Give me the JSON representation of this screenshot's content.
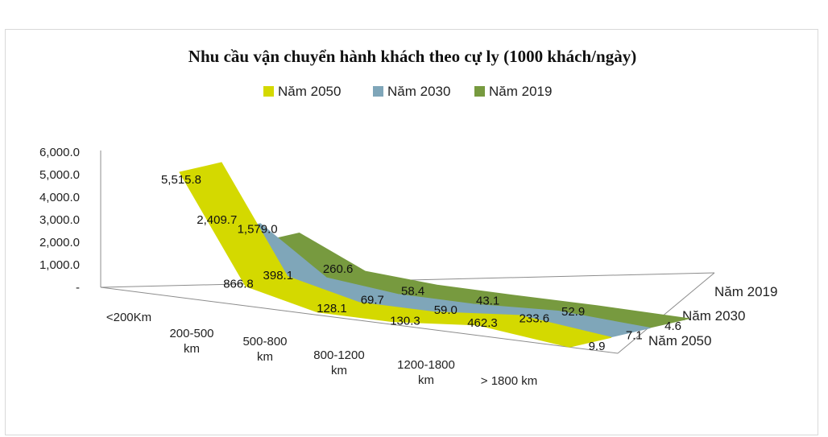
{
  "chart_data": {
    "type": "line",
    "subtype": "3d-ribbon",
    "title": "Nhu cầu vận chuyển hành khách theo cự ly (1000 khách/ngày)",
    "categories": [
      "<200Km",
      "200-500 km",
      "500-800 km",
      "800-1200 km",
      "1200-1800 km",
      "> 1800 km"
    ],
    "yticks": [
      "6,000.0",
      "5,000.0",
      "4,000.0",
      "3,000.0",
      "2,000.0",
      "1,000.0",
      "-"
    ],
    "ylim": [
      0,
      6000
    ],
    "legend_position": "top",
    "series": [
      {
        "name": "Năm 2050",
        "color": "#d4d900",
        "values": [
          5515.8,
          866.8,
          128.1,
          130.3,
          462.3,
          9.9
        ],
        "labels": [
          "5,515.8",
          "866.8",
          "128.1",
          "130.3",
          "462.3",
          "9.9"
        ]
      },
      {
        "name": "Năm 2030",
        "color": "#7fa6b9",
        "values": [
          2409.7,
          398.1,
          69.7,
          59.0,
          233.6,
          7.1
        ],
        "labels": [
          "2,409.7",
          "398.1",
          "69.7",
          "59.0",
          "233.6",
          "7.1"
        ]
      },
      {
        "name": "Năm 2019",
        "color": "#779a3f",
        "values": [
          1579.0,
          260.6,
          58.4,
          43.1,
          52.9,
          4.6
        ],
        "labels": [
          "1,579.0",
          "260.6",
          "58.4",
          "43.1",
          "52.9",
          "4.6"
        ]
      }
    ],
    "legend_order": [
      "Năm 2050",
      "Năm 2030",
      "Năm 2019"
    ],
    "series_axis_labels": [
      "Năm 2019",
      "Năm 2030",
      "Năm 2050"
    ]
  }
}
